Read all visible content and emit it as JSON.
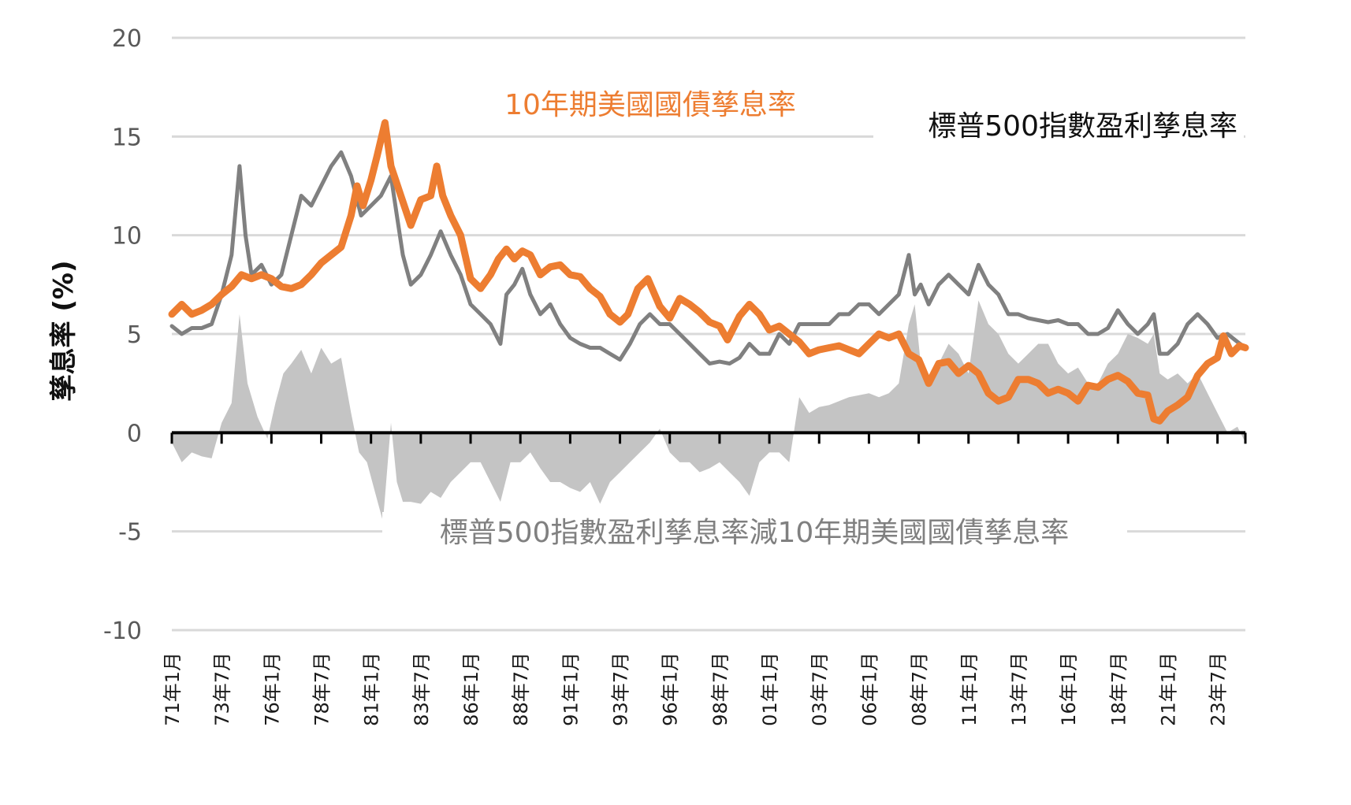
{
  "chart_data": {
    "type": "line",
    "title": "",
    "xlabel": "",
    "ylabel": "孳息率 (%)",
    "ylim": [
      -10,
      20
    ],
    "yticks": [
      20,
      15,
      10,
      5,
      0,
      -5,
      -10
    ],
    "ytick_labels": [
      "20",
      "15",
      "10",
      "5",
      "0",
      "-5",
      "-10"
    ],
    "x_range": [
      1971.0,
      2024.9
    ],
    "xtick_labels": [
      "71年1月",
      "73年7月",
      "76年1月",
      "78年7月",
      "81年1月",
      "83年7月",
      "86年1月",
      "88年7月",
      "91年1月",
      "93年7月",
      "96年1月",
      "98年7月",
      "01年1月",
      "03年7月",
      "06年1月",
      "08年7月",
      "11年1月",
      "13年7月",
      "16年1月",
      "18年7月",
      "21年1月",
      "23年7月"
    ],
    "xtick_values": [
      1971.0,
      1973.5,
      1976.0,
      1978.5,
      1981.0,
      1983.5,
      1986.0,
      1988.5,
      1991.0,
      1993.5,
      1996.0,
      1998.5,
      2001.0,
      2003.5,
      2006.0,
      2008.5,
      2011.0,
      2013.5,
      2016.0,
      2018.5,
      2021.0,
      2023.5
    ],
    "colors": {
      "treasury": "#ED7D31",
      "earnings": "#808080",
      "spread": "#C4C4C4",
      "axis": "#000000",
      "grid": "#D9D9D9"
    },
    "series": [
      {
        "name": "10年期美國國債孳息率",
        "kind": "line",
        "x": [
          1971.0,
          1971.5,
          1972.0,
          1972.5,
          1973.0,
          1973.5,
          1974.0,
          1974.5,
          1975.0,
          1975.5,
          1976.0,
          1976.5,
          1977.0,
          1977.5,
          1978.0,
          1978.5,
          1979.0,
          1979.5,
          1980.0,
          1980.3,
          1980.6,
          1981.0,
          1981.3,
          1981.7,
          1982.0,
          1982.5,
          1983.0,
          1983.5,
          1984.0,
          1984.3,
          1984.6,
          1985.0,
          1985.5,
          1986.0,
          1986.5,
          1987.0,
          1987.4,
          1987.8,
          1988.2,
          1988.6,
          1989.0,
          1989.5,
          1990.0,
          1990.5,
          1991.0,
          1991.5,
          1992.0,
          1992.5,
          1993.0,
          1993.5,
          1993.9,
          1994.4,
          1994.9,
          1995.5,
          1996.0,
          1996.5,
          1997.0,
          1997.5,
          1998.0,
          1998.5,
          1998.9,
          1999.5,
          2000.0,
          2000.5,
          2001.0,
          2001.5,
          2002.0,
          2002.5,
          2003.0,
          2003.5,
          2004.0,
          2004.5,
          2005.0,
          2005.5,
          2006.0,
          2006.5,
          2007.0,
          2007.5,
          2008.0,
          2008.5,
          2009.0,
          2009.5,
          2010.0,
          2010.5,
          2011.0,
          2011.5,
          2012.0,
          2012.5,
          2013.0,
          2013.5,
          2014.0,
          2014.5,
          2015.0,
          2015.5,
          2016.0,
          2016.5,
          2017.0,
          2017.5,
          2018.0,
          2018.5,
          2019.0,
          2019.5,
          2020.0,
          2020.3,
          2020.6,
          2021.0,
          2021.5,
          2022.0,
          2022.5,
          2023.0,
          2023.5,
          2023.8,
          2024.2,
          2024.6,
          2024.9
        ],
        "values": [
          6.0,
          6.5,
          6.0,
          6.2,
          6.5,
          7.0,
          7.4,
          8.0,
          7.8,
          8.0,
          7.8,
          7.4,
          7.3,
          7.5,
          8.0,
          8.6,
          9.0,
          9.4,
          11.0,
          12.5,
          11.5,
          12.8,
          14.0,
          15.7,
          13.5,
          12.0,
          10.5,
          11.8,
          12.0,
          13.5,
          12.0,
          11.0,
          10.0,
          7.8,
          7.3,
          8.0,
          8.8,
          9.3,
          8.8,
          9.2,
          9.0,
          8.0,
          8.4,
          8.5,
          8.0,
          7.9,
          7.3,
          6.9,
          6.0,
          5.6,
          6.0,
          7.3,
          7.8,
          6.4,
          5.8,
          6.8,
          6.5,
          6.1,
          5.6,
          5.4,
          4.7,
          5.9,
          6.5,
          6.0,
          5.2,
          5.4,
          5.0,
          4.6,
          4.0,
          4.2,
          4.3,
          4.4,
          4.2,
          4.0,
          4.5,
          5.0,
          4.8,
          5.0,
          4.0,
          3.7,
          2.5,
          3.5,
          3.6,
          3.0,
          3.4,
          3.0,
          2.0,
          1.6,
          1.8,
          2.7,
          2.7,
          2.5,
          2.0,
          2.2,
          2.0,
          1.6,
          2.4,
          2.3,
          2.7,
          2.9,
          2.6,
          2.0,
          1.9,
          0.7,
          0.6,
          1.1,
          1.4,
          1.8,
          2.9,
          3.5,
          3.8,
          4.9,
          4.0,
          4.4,
          4.3
        ]
      },
      {
        "name": "標普500指數盈利孳息率",
        "kind": "line",
        "x": [
          1971.0,
          1971.5,
          1972.0,
          1972.5,
          1973.0,
          1973.5,
          1974.0,
          1974.4,
          1974.7,
          1975.0,
          1975.5,
          1976.0,
          1976.5,
          1977.0,
          1977.5,
          1978.0,
          1978.5,
          1979.0,
          1979.5,
          1980.0,
          1980.5,
          1981.0,
          1981.5,
          1982.0,
          1982.3,
          1982.6,
          1983.0,
          1983.5,
          1984.0,
          1984.5,
          1985.0,
          1985.5,
          1986.0,
          1986.5,
          1987.0,
          1987.5,
          1987.8,
          1988.2,
          1988.6,
          1989.0,
          1989.5,
          1990.0,
          1990.5,
          1991.0,
          1991.5,
          1992.0,
          1992.5,
          1993.0,
          1993.5,
          1994.0,
          1994.5,
          1995.0,
          1995.5,
          1996.0,
          1996.5,
          1997.0,
          1997.5,
          1998.0,
          1998.5,
          1999.0,
          1999.5,
          2000.0,
          2000.5,
          2001.0,
          2001.5,
          2002.0,
          2002.5,
          2003.0,
          2003.5,
          2004.0,
          2004.5,
          2005.0,
          2005.5,
          2006.0,
          2006.5,
          2007.0,
          2007.5,
          2008.0,
          2008.3,
          2008.6,
          2009.0,
          2009.5,
          2010.0,
          2010.5,
          2011.0,
          2011.5,
          2012.0,
          2012.5,
          2013.0,
          2013.5,
          2014.0,
          2014.5,
          2015.0,
          2015.5,
          2016.0,
          2016.5,
          2017.0,
          2017.5,
          2018.0,
          2018.5,
          2019.0,
          2019.5,
          2020.0,
          2020.3,
          2020.6,
          2021.0,
          2021.5,
          2022.0,
          2022.5,
          2023.0,
          2023.5,
          2024.0,
          2024.5,
          2024.9
        ],
        "values": [
          5.4,
          5.0,
          5.3,
          5.3,
          5.5,
          7.0,
          9.0,
          13.5,
          10.0,
          8.0,
          8.5,
          7.5,
          8.0,
          10.0,
          12.0,
          11.5,
          12.5,
          13.5,
          14.2,
          13.0,
          11.0,
          11.5,
          12.0,
          13.0,
          11.0,
          9.0,
          7.5,
          8.0,
          9.0,
          10.2,
          9.0,
          8.0,
          6.5,
          6.0,
          5.5,
          4.5,
          7.0,
          7.5,
          8.3,
          7.0,
          6.0,
          6.5,
          5.5,
          4.8,
          4.5,
          4.3,
          4.3,
          4.0,
          3.7,
          4.5,
          5.5,
          6.0,
          5.5,
          5.5,
          5.0,
          4.5,
          4.0,
          3.5,
          3.6,
          3.5,
          3.8,
          4.5,
          4.0,
          4.0,
          5.0,
          4.5,
          5.5,
          5.5,
          5.5,
          5.5,
          6.0,
          6.0,
          6.5,
          6.5,
          6.0,
          6.5,
          7.0,
          9.0,
          7.0,
          7.5,
          6.5,
          7.5,
          8.0,
          7.5,
          7.0,
          8.5,
          7.5,
          7.0,
          6.0,
          6.0,
          5.8,
          5.7,
          5.6,
          5.7,
          5.5,
          5.5,
          5.0,
          5.0,
          5.3,
          6.2,
          5.5,
          5.0,
          5.5,
          6.0,
          4.0,
          4.0,
          4.5,
          5.5,
          6.0,
          5.5,
          4.8,
          5.0,
          4.6,
          4.3
        ]
      },
      {
        "name": "標普500指數盈利孳息率減10年期美國國債孳息率",
        "kind": "area",
        "x": [
          1971.0,
          1971.5,
          1972.0,
          1972.5,
          1973.0,
          1973.5,
          1974.0,
          1974.4,
          1974.8,
          1975.3,
          1975.8,
          1976.2,
          1976.6,
          1977.0,
          1977.5,
          1978.0,
          1978.5,
          1979.0,
          1979.5,
          1980.0,
          1980.4,
          1980.8,
          1981.2,
          1981.6,
          1982.0,
          1982.3,
          1982.6,
          1983.0,
          1983.5,
          1984.0,
          1984.5,
          1985.0,
          1985.5,
          1986.0,
          1986.5,
          1987.0,
          1987.5,
          1988.0,
          1988.5,
          1989.0,
          1989.5,
          1990.0,
          1990.5,
          1991.0,
          1991.5,
          1992.0,
          1992.5,
          1993.0,
          1993.5,
          1994.0,
          1994.5,
          1995.0,
          1995.5,
          1996.0,
          1996.5,
          1997.0,
          1997.5,
          1998.0,
          1998.5,
          1999.0,
          1999.5,
          2000.0,
          2000.5,
          2001.0,
          2001.5,
          2002.0,
          2002.5,
          2003.0,
          2003.5,
          2004.0,
          2004.5,
          2005.0,
          2005.5,
          2006.0,
          2006.5,
          2007.0,
          2007.5,
          2008.0,
          2008.3,
          2008.6,
          2009.0,
          2009.5,
          2010.0,
          2010.5,
          2011.0,
          2011.5,
          2012.0,
          2012.5,
          2013.0,
          2013.5,
          2014.0,
          2014.5,
          2015.0,
          2015.5,
          2016.0,
          2016.5,
          2017.0,
          2017.5,
          2018.0,
          2018.5,
          2019.0,
          2019.5,
          2020.0,
          2020.3,
          2020.6,
          2021.0,
          2021.5,
          2022.0,
          2022.5,
          2023.0,
          2023.5,
          2024.0,
          2024.5,
          2024.9
        ],
        "values": [
          -0.5,
          -1.5,
          -1.0,
          -1.2,
          -1.3,
          0.5,
          1.5,
          6.0,
          2.5,
          0.8,
          -0.3,
          1.5,
          3.0,
          3.5,
          4.2,
          3.0,
          4.3,
          3.5,
          3.8,
          1.0,
          -1.0,
          -1.5,
          -3.0,
          -4.5,
          0.5,
          -2.5,
          -3.5,
          -3.5,
          -3.6,
          -3.0,
          -3.3,
          -2.5,
          -2.0,
          -1.5,
          -1.5,
          -2.5,
          -3.5,
          -1.5,
          -1.5,
          -1.0,
          -1.8,
          -2.5,
          -2.5,
          -2.8,
          -3.0,
          -2.5,
          -3.6,
          -2.5,
          -2.0,
          -1.5,
          -1.0,
          -0.5,
          0.2,
          -1.0,
          -1.5,
          -1.5,
          -2.0,
          -1.8,
          -1.5,
          -2.0,
          -2.5,
          -3.2,
          -1.5,
          -1.0,
          -1.0,
          -1.5,
          1.8,
          1.0,
          1.3,
          1.4,
          1.6,
          1.8,
          1.9,
          2.0,
          1.8,
          2.0,
          2.5,
          5.5,
          6.5,
          3.5,
          2.5,
          3.5,
          4.5,
          4.0,
          3.0,
          6.7,
          5.5,
          5.0,
          4.0,
          3.5,
          4.0,
          4.5,
          4.5,
          3.5,
          3.0,
          3.3,
          2.5,
          2.5,
          3.5,
          4.0,
          5.0,
          4.8,
          4.5,
          5.0,
          3.0,
          2.7,
          3.0,
          2.5,
          3.0,
          2.0,
          1.0,
          0.0,
          0.3,
          -0.5
        ]
      }
    ],
    "annotations": [
      {
        "text": "10年期美國國債孳息率",
        "near_series": "10年期美國國債孳息率",
        "placement": "upper-center"
      },
      {
        "text": "標普500指數盈利孳息率",
        "near_series": "標普500指數盈利孳息率",
        "placement": "upper-right"
      },
      {
        "text": "標普500指數盈利孳息率減10年期美國國債孳息率",
        "near_series": "標普500指數盈利孳息率減10年期美國國債孳息率",
        "placement": "lower-center"
      }
    ],
    "legend": "none (inline labels)",
    "grid": true
  }
}
